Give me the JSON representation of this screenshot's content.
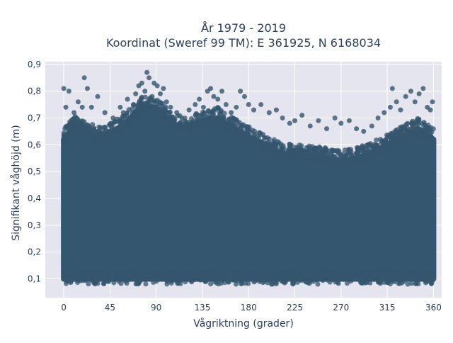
{
  "chart_data": {
    "type": "scatter",
    "title_line1": "År 1979 - 2019",
    "title_line2": "Koordinat (Sweref 99 TM): E 361925, N 6168034",
    "xlabel": "Vågriktning (grader)",
    "ylabel": "Signifikant våghöjd (m)",
    "xlim": [
      -18,
      368
    ],
    "ylim": [
      0.03,
      0.91
    ],
    "x_ticks": [
      0,
      45,
      90,
      135,
      180,
      225,
      270,
      315,
      360
    ],
    "x_tick_labels": [
      "0",
      "45",
      "90",
      "135",
      "180",
      "225",
      "270",
      "315",
      "360"
    ],
    "y_ticks": [
      0.1,
      0.2,
      0.3,
      0.4,
      0.5,
      0.6,
      0.7,
      0.8,
      0.9
    ],
    "y_tick_labels": [
      "0,1",
      "0,2",
      "0,3",
      "0,4",
      "0,5",
      "0,6",
      "0,7",
      "0,8",
      "0,9"
    ],
    "grid": true,
    "marker_color": "#34566e",
    "plot_background": "#e5e5ef",
    "envelope": [
      {
        "x": 0,
        "y": 0.62
      },
      {
        "x": 10,
        "y": 0.67
      },
      {
        "x": 20,
        "y": 0.66
      },
      {
        "x": 30,
        "y": 0.63
      },
      {
        "x": 45,
        "y": 0.64
      },
      {
        "x": 60,
        "y": 0.68
      },
      {
        "x": 75,
        "y": 0.74
      },
      {
        "x": 90,
        "y": 0.74
      },
      {
        "x": 105,
        "y": 0.68
      },
      {
        "x": 120,
        "y": 0.66
      },
      {
        "x": 135,
        "y": 0.69
      },
      {
        "x": 150,
        "y": 0.7
      },
      {
        "x": 165,
        "y": 0.66
      },
      {
        "x": 180,
        "y": 0.63
      },
      {
        "x": 195,
        "y": 0.6
      },
      {
        "x": 210,
        "y": 0.57
      },
      {
        "x": 225,
        "y": 0.56
      },
      {
        "x": 240,
        "y": 0.56
      },
      {
        "x": 255,
        "y": 0.55
      },
      {
        "x": 270,
        "y": 0.54
      },
      {
        "x": 285,
        "y": 0.55
      },
      {
        "x": 300,
        "y": 0.57
      },
      {
        "x": 315,
        "y": 0.6
      },
      {
        "x": 330,
        "y": 0.63
      },
      {
        "x": 345,
        "y": 0.66
      },
      {
        "x": 360,
        "y": 0.62
      }
    ],
    "outliers": [
      {
        "x": 0,
        "y": 0.81
      },
      {
        "x": 2,
        "y": 0.74
      },
      {
        "x": 5,
        "y": 0.8
      },
      {
        "x": 10,
        "y": 0.72
      },
      {
        "x": 14,
        "y": 0.76
      },
      {
        "x": 18,
        "y": 0.74
      },
      {
        "x": 20,
        "y": 0.85
      },
      {
        "x": 23,
        "y": 0.81
      },
      {
        "x": 27,
        "y": 0.74
      },
      {
        "x": 33,
        "y": 0.78
      },
      {
        "x": 40,
        "y": 0.72
      },
      {
        "x": 48,
        "y": 0.7
      },
      {
        "x": 55,
        "y": 0.74
      },
      {
        "x": 58,
        "y": 0.72
      },
      {
        "x": 62,
        "y": 0.77
      },
      {
        "x": 68,
        "y": 0.75
      },
      {
        "x": 70,
        "y": 0.79
      },
      {
        "x": 73,
        "y": 0.82
      },
      {
        "x": 76,
        "y": 0.83
      },
      {
        "x": 79,
        "y": 0.8
      },
      {
        "x": 81,
        "y": 0.87
      },
      {
        "x": 83,
        "y": 0.85
      },
      {
        "x": 86,
        "y": 0.78
      },
      {
        "x": 88,
        "y": 0.83
      },
      {
        "x": 91,
        "y": 0.82
      },
      {
        "x": 94,
        "y": 0.79
      },
      {
        "x": 97,
        "y": 0.81
      },
      {
        "x": 100,
        "y": 0.76
      },
      {
        "x": 104,
        "y": 0.74
      },
      {
        "x": 110,
        "y": 0.72
      },
      {
        "x": 115,
        "y": 0.7
      },
      {
        "x": 122,
        "y": 0.73
      },
      {
        "x": 128,
        "y": 0.75
      },
      {
        "x": 132,
        "y": 0.77
      },
      {
        "x": 136,
        "y": 0.74
      },
      {
        "x": 140,
        "y": 0.8
      },
      {
        "x": 143,
        "y": 0.81
      },
      {
        "x": 146,
        "y": 0.78
      },
      {
        "x": 150,
        "y": 0.77
      },
      {
        "x": 154,
        "y": 0.8
      },
      {
        "x": 158,
        "y": 0.75
      },
      {
        "x": 163,
        "y": 0.72
      },
      {
        "x": 168,
        "y": 0.74
      },
      {
        "x": 172,
        "y": 0.8
      },
      {
        "x": 176,
        "y": 0.78
      },
      {
        "x": 180,
        "y": 0.75
      },
      {
        "x": 185,
        "y": 0.73
      },
      {
        "x": 192,
        "y": 0.75
      },
      {
        "x": 200,
        "y": 0.72
      },
      {
        "x": 207,
        "y": 0.73
      },
      {
        "x": 213,
        "y": 0.7
      },
      {
        "x": 220,
        "y": 0.68
      },
      {
        "x": 225,
        "y": 0.69
      },
      {
        "x": 232,
        "y": 0.71
      },
      {
        "x": 240,
        "y": 0.67
      },
      {
        "x": 248,
        "y": 0.69
      },
      {
        "x": 256,
        "y": 0.66
      },
      {
        "x": 264,
        "y": 0.7
      },
      {
        "x": 270,
        "y": 0.68
      },
      {
        "x": 278,
        "y": 0.69
      },
      {
        "x": 285,
        "y": 0.66
      },
      {
        "x": 292,
        "y": 0.65
      },
      {
        "x": 300,
        "y": 0.67
      },
      {
        "x": 306,
        "y": 0.7
      },
      {
        "x": 312,
        "y": 0.72
      },
      {
        "x": 318,
        "y": 0.74
      },
      {
        "x": 320,
        "y": 0.81
      },
      {
        "x": 324,
        "y": 0.76
      },
      {
        "x": 328,
        "y": 0.73
      },
      {
        "x": 333,
        "y": 0.78
      },
      {
        "x": 338,
        "y": 0.8
      },
      {
        "x": 342,
        "y": 0.76
      },
      {
        "x": 346,
        "y": 0.79
      },
      {
        "x": 350,
        "y": 0.81
      },
      {
        "x": 354,
        "y": 0.74
      },
      {
        "x": 357,
        "y": 0.73
      },
      {
        "x": 359,
        "y": 0.76
      }
    ]
  }
}
